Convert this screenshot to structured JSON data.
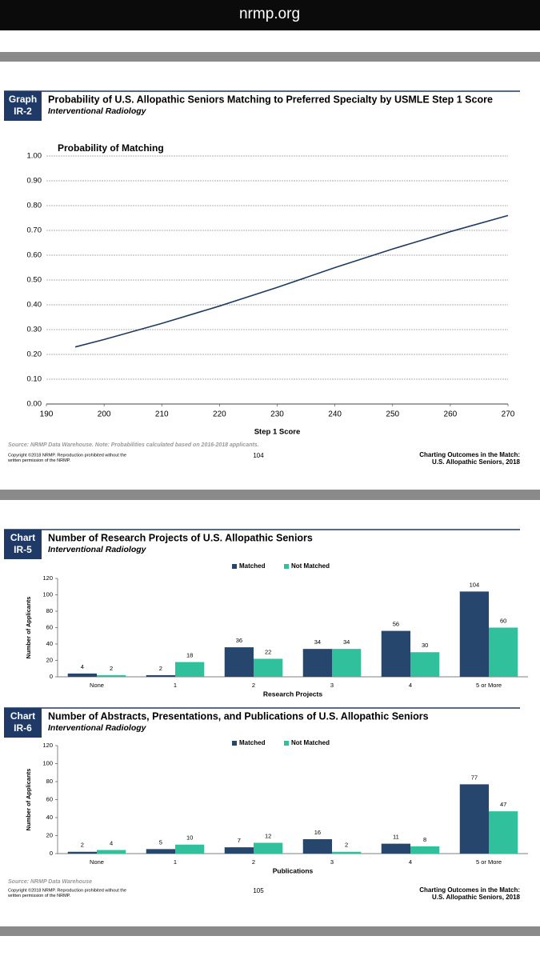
{
  "site": "nrmp.org",
  "chart_data": [
    {
      "type": "line",
      "label": [
        "Graph",
        "IR-2"
      ],
      "title": "Probability of U.S. Allopathic Seniors Matching to Preferred Specialty by USMLE Step 1 Score",
      "subtitle": "Interventional Radiology",
      "ylabel": "Probability of Matching",
      "xlabel": "Step 1 Score",
      "x": [
        195,
        200,
        210,
        220,
        230,
        240,
        250,
        260,
        270
      ],
      "series": [
        {
          "color": "#1f3a5f",
          "values": [
            0.23,
            0.26,
            0.325,
            0.395,
            0.47,
            0.55,
            0.625,
            0.695,
            0.76
          ]
        }
      ],
      "xlim": [
        190,
        270
      ],
      "xticks": [
        190,
        200,
        210,
        220,
        230,
        240,
        250,
        260,
        270
      ],
      "ylim": [
        0,
        1
      ],
      "yticks": [
        {
          "value": 0,
          "label": "0.00"
        },
        {
          "value": 0.1,
          "label": "0.10"
        },
        {
          "value": 0.2,
          "label": "0.20"
        },
        {
          "value": 0.3,
          "label": "0.30"
        },
        {
          "value": 0.4,
          "label": "0.40"
        },
        {
          "value": 0.5,
          "label": "0.50"
        },
        {
          "value": 0.6,
          "label": "0.60"
        },
        {
          "value": 0.7,
          "label": "0.70"
        },
        {
          "value": 0.8,
          "label": "0.80"
        },
        {
          "value": 0.9,
          "label": "0.90"
        },
        {
          "value": 1,
          "label": "1.00"
        }
      ],
      "grid": true,
      "source": "Source: NRMP Data Warehouse. Note: Probabilities calculated based on 2016-2018 applicants.",
      "footer": {
        "copyright": [
          "Copyright ©2018 NRMP. Reproduction prohibited without the",
          "written permission of the NRMP."
        ],
        "page": "104",
        "publication": [
          "Charting Outcomes in the Match:",
          "U.S. Allopathic Seniors, 2018"
        ]
      }
    },
    {
      "type": "bar",
      "label": [
        "Chart",
        "IR-5"
      ],
      "title": "Number of Research Projects of U.S. Allopathic Seniors",
      "subtitle": "Interventional Radiology",
      "ylabel": "Number of Applicants",
      "xlabel": "Research Projects",
      "categories": [
        "None",
        "1",
        "2",
        "3",
        "4",
        "5 or More"
      ],
      "series": [
        {
          "name": "Matched",
          "color": "#27466d",
          "values": [
            4,
            2,
            36,
            34,
            56,
            104
          ]
        },
        {
          "name": "Not Matched",
          "color": "#30c19c",
          "values": [
            2,
            18,
            22,
            34,
            30,
            60
          ]
        }
      ],
      "ylim": [
        0,
        120
      ],
      "yticks": [
        0,
        20,
        40,
        60,
        80,
        100,
        120
      ]
    },
    {
      "type": "bar",
      "label": [
        "Chart",
        "IR-6"
      ],
      "title": "Number of Abstracts, Presentations, and Publications of U.S. Allopathic Seniors",
      "subtitle": "Interventional Radiology",
      "ylabel": "Number of Applicants",
      "xlabel": "Publications",
      "categories": [
        "None",
        "1",
        "2",
        "3",
        "4",
        "5 or More"
      ],
      "series": [
        {
          "name": "Matched",
          "color": "#27466d",
          "values": [
            2,
            5,
            7,
            16,
            11,
            77
          ]
        },
        {
          "name": "Not Matched",
          "color": "#30c19c",
          "values": [
            4,
            10,
            12,
            2,
            8,
            47
          ]
        }
      ],
      "ylim": [
        0,
        120
      ],
      "yticks": [
        0,
        20,
        40,
        60,
        80,
        100,
        120
      ],
      "source": "Source: NRMP Data Warehouse",
      "footer": {
        "copyright": [
          "Copyright ©2018 NRMP. Reproduction prohibited without the",
          "written permission of the NRMP."
        ],
        "page": "105",
        "publication": [
          "Charting Outcomes in the Match:",
          "U.S. Allopathic Seniors, 2018"
        ]
      }
    }
  ]
}
